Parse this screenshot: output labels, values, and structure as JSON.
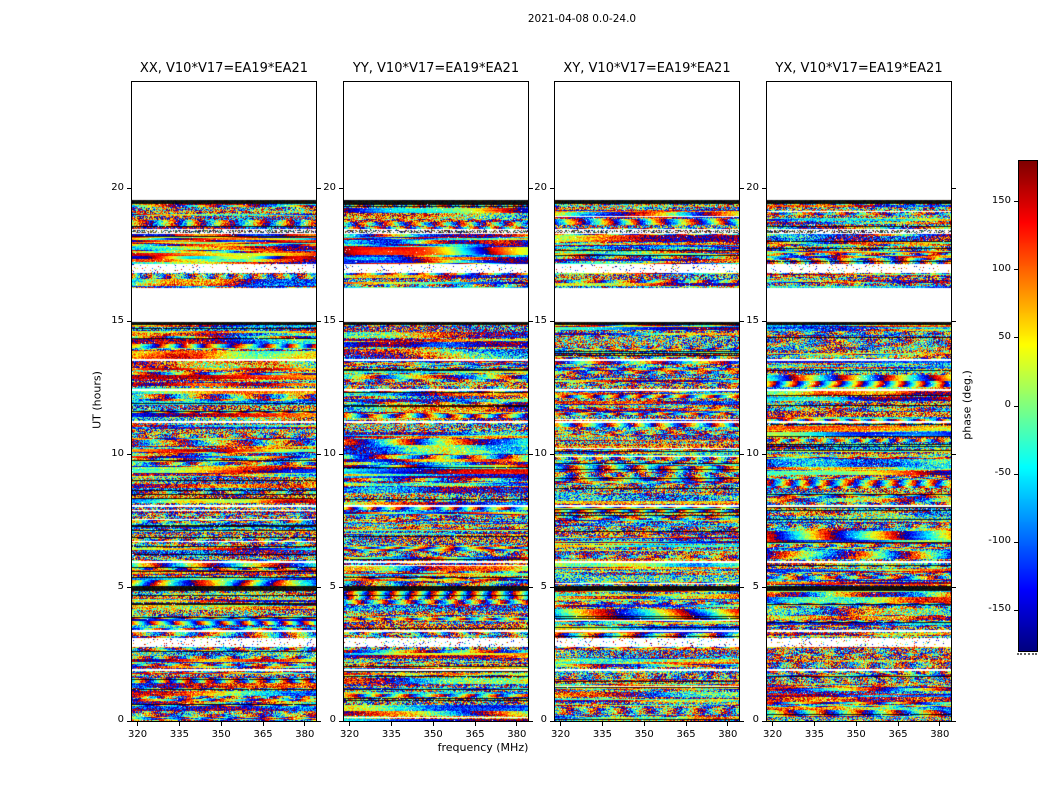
{
  "chart_data": {
    "type": "heatmap",
    "title": "2021-04-08 0.0-24.0",
    "panels": [
      {
        "pol": "XX",
        "title": "XX, V10*V17=EA19*EA21"
      },
      {
        "pol": "YY",
        "title": "YY, V10*V17=EA19*EA21"
      },
      {
        "pol": "XY",
        "title": "XY, V10*V17=EA19*EA21"
      },
      {
        "pol": "YX",
        "title": "YX, V10*V17=EA19*EA21"
      }
    ],
    "x_axis": {
      "label": "frequency (MHz)",
      "range": [
        318,
        384
      ],
      "ticks": [
        320,
        335,
        350,
        365,
        380
      ]
    },
    "y_axis": {
      "label": "UT (hours)",
      "range": [
        0,
        24
      ],
      "ticks": [
        0,
        5,
        10,
        15,
        20
      ]
    },
    "colorbar": {
      "label": "phase (deg.)",
      "range": [
        -180,
        180
      ],
      "ticks": [
        -150,
        -100,
        -50,
        0,
        50,
        100,
        150
      ],
      "colormap": "jet"
    },
    "coverage": {
      "data_bands": [
        {
          "t0": 0.0,
          "t1": 15.0,
          "kind": "noise"
        },
        {
          "t0": 16.3,
          "t1": 16.85,
          "kind": "noise"
        },
        {
          "t0": 16.85,
          "t1": 17.2,
          "kind": "speckle"
        },
        {
          "t0": 17.2,
          "t1": 18.3,
          "kind": "smooth"
        },
        {
          "t0": 18.3,
          "t1": 18.5,
          "kind": "dotline"
        },
        {
          "t0": 18.5,
          "t1": 19.45,
          "kind": "noise"
        },
        {
          "t0": 19.45,
          "t1": 19.6,
          "kind": "dark"
        }
      ],
      "white_gaps": [
        {
          "t0": 1.9,
          "t1": 1.96,
          "speckle": false
        },
        {
          "t0": 2.8,
          "t1": 3.15,
          "speckle": true
        },
        {
          "t0": 3.35,
          "t1": 3.45,
          "speckle": false
        },
        {
          "t0": 5.95,
          "t1": 6.03,
          "speckle": false
        },
        {
          "t0": 8.05,
          "t1": 8.13,
          "speckle": false
        },
        {
          "t0": 11.2,
          "t1": 11.28,
          "speckle": false
        },
        {
          "t0": 12.4,
          "t1": 12.48,
          "speckle": false
        },
        {
          "t0": 13.55,
          "t1": 13.62,
          "speckle": false
        }
      ],
      "dark_lines": [
        {
          "t0": 4.9,
          "t1": 5.08
        },
        {
          "t0": 14.9,
          "t1": 15.0
        }
      ]
    },
    "panel_tints": {
      "XX": [
        {
          "t0": 17.2,
          "t1": 18.3,
          "bias": 85,
          "smooth": 0.75
        },
        {
          "t0": 9.3,
          "t1": 10.6,
          "bias": 65,
          "smooth": 0.45
        },
        {
          "t0": 13.1,
          "t1": 14.85,
          "bias": 45,
          "smooth": 0.2
        },
        {
          "t0": 5.1,
          "t1": 6.1,
          "bias": 80,
          "smooth": 0.3
        },
        {
          "t0": 2.2,
          "t1": 2.8,
          "bias": 70,
          "smooth": 0.3
        }
      ],
      "YY": [
        {
          "t0": 17.2,
          "t1": 18.3,
          "bias": -115,
          "smooth": 0.75
        },
        {
          "t0": 9.3,
          "t1": 10.6,
          "bias": -100,
          "smooth": 0.45
        },
        {
          "t0": 5.1,
          "t1": 6.1,
          "bias": -70,
          "smooth": 0.3
        }
      ],
      "XY": [
        {
          "t0": 17.2,
          "t1": 18.3,
          "bias": -25,
          "smooth": 0.3
        }
      ],
      "YX": [
        {
          "t0": 17.2,
          "t1": 18.3,
          "bias": 15,
          "smooth": 0.25
        }
      ]
    },
    "render": {
      "seed": 12345,
      "axis_color": "#000000",
      "background": "#ffffff"
    }
  }
}
